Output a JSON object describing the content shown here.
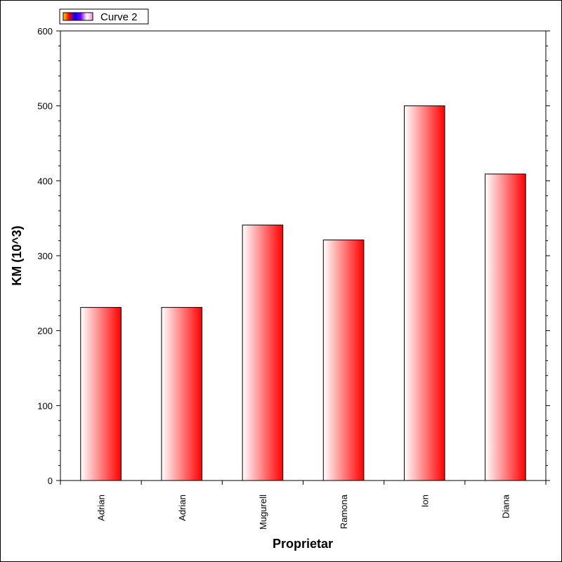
{
  "chart_data": {
    "type": "bar",
    "categories": [
      "Adrian",
      "Adrian",
      "Mugurell",
      "Ramona",
      "Ion",
      "Diana"
    ],
    "series": [
      {
        "name": "Curve 2",
        "values": [
          231,
          231,
          341,
          321,
          500,
          409
        ]
      }
    ],
    "xlabel": "Proprietar",
    "ylabel": "KM (10^3)",
    "ylim": [
      0,
      600
    ],
    "yticks": [
      0,
      100,
      200,
      300,
      400,
      500,
      600
    ],
    "grid": false,
    "legend_position": "top-left",
    "colors": {
      "bar_light": "#ffffff",
      "bar_dark": "#ff0000",
      "axis": "#000000"
    }
  }
}
